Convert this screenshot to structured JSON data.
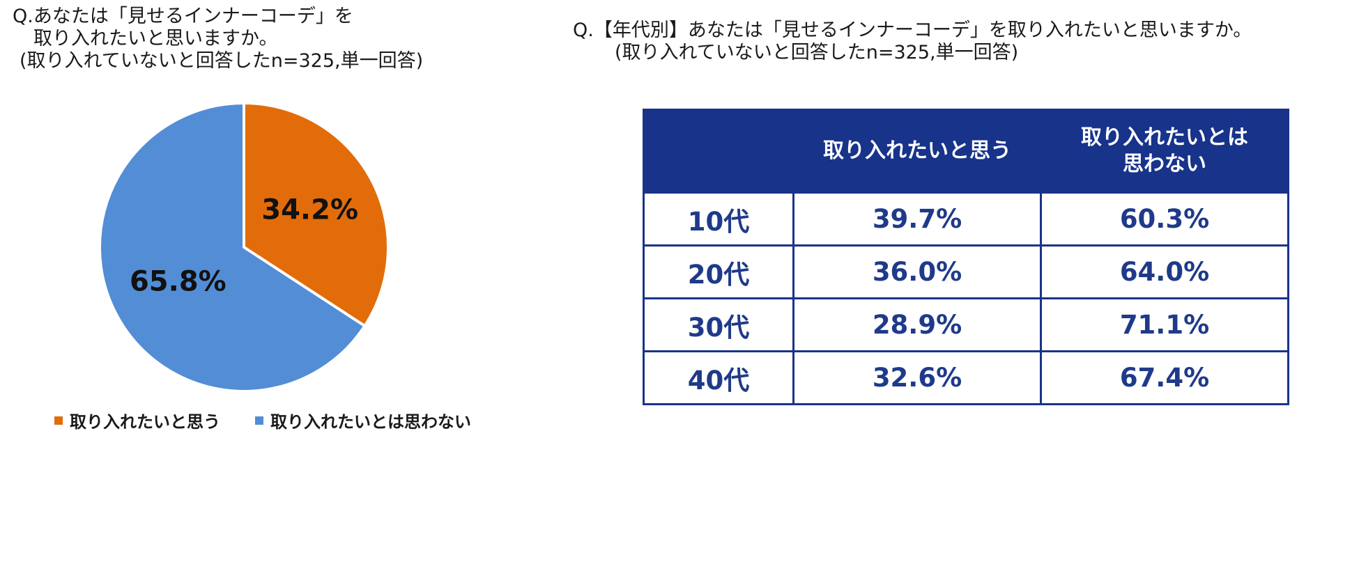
{
  "left_title": {
    "line1": "Q.あなたは「見せるインナーコーデ」を",
    "line2": "取り入れたいと思いますか。",
    "line3": "(取り入れていないと回答したn=325,単一回答)"
  },
  "right_title": {
    "line1": "Q.【年代別】あなたは「見せるインナーコーデ」を取り入れたいと思いますか。",
    "line2": "(取り入れていないと回答したn=325,単一回答)"
  },
  "colors": {
    "want": "#e36c0a",
    "not_want": "#538dd5",
    "table_header_bg": "#17338a",
    "table_text": "#1f3a8a"
  },
  "chart_data": [
    {
      "type": "pie",
      "slices": [
        {
          "label": "取り入れたいと思う",
          "value": 34.2,
          "display": "34.2%"
        },
        {
          "label": "取り入れたいとは思わない",
          "value": 65.8,
          "display": "65.8%"
        }
      ],
      "legend": [
        "取り入れたいと思う",
        "取り入れたいとは思わない"
      ],
      "legend_position": "bottom"
    },
    {
      "type": "table",
      "columns": [
        "",
        "取り入れたいと思う",
        "取り入れたいとは\n思わない"
      ],
      "rows": [
        {
          "age": "10代",
          "want": "39.7%",
          "not_want": "60.3%"
        },
        {
          "age": "20代",
          "want": "36.0%",
          "not_want": "64.0%"
        },
        {
          "age": "30代",
          "want": "28.9%",
          "not_want": "71.1%"
        },
        {
          "age": "40代",
          "want": "32.6%",
          "not_want": "67.4%"
        }
      ]
    }
  ]
}
